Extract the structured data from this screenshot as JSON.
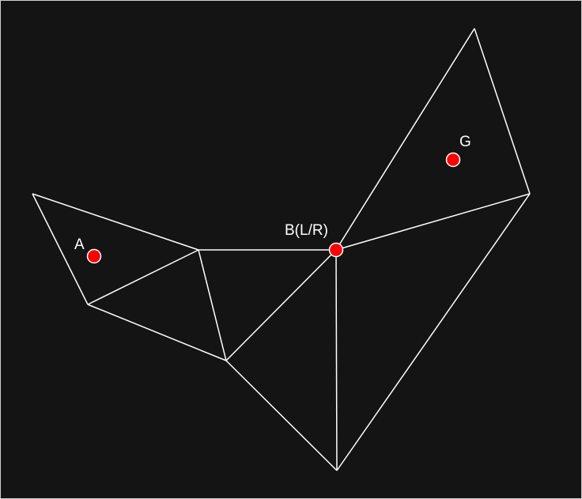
{
  "colors": {
    "background": "#141414",
    "edge": "#ffffff",
    "point_fill": "#ff0000",
    "point_stroke": "#ffffff",
    "label": "#ffffff"
  },
  "points": {
    "A": {
      "label": "A"
    },
    "B": {
      "label": "B(L/R)"
    },
    "G": {
      "label": "G"
    }
  }
}
